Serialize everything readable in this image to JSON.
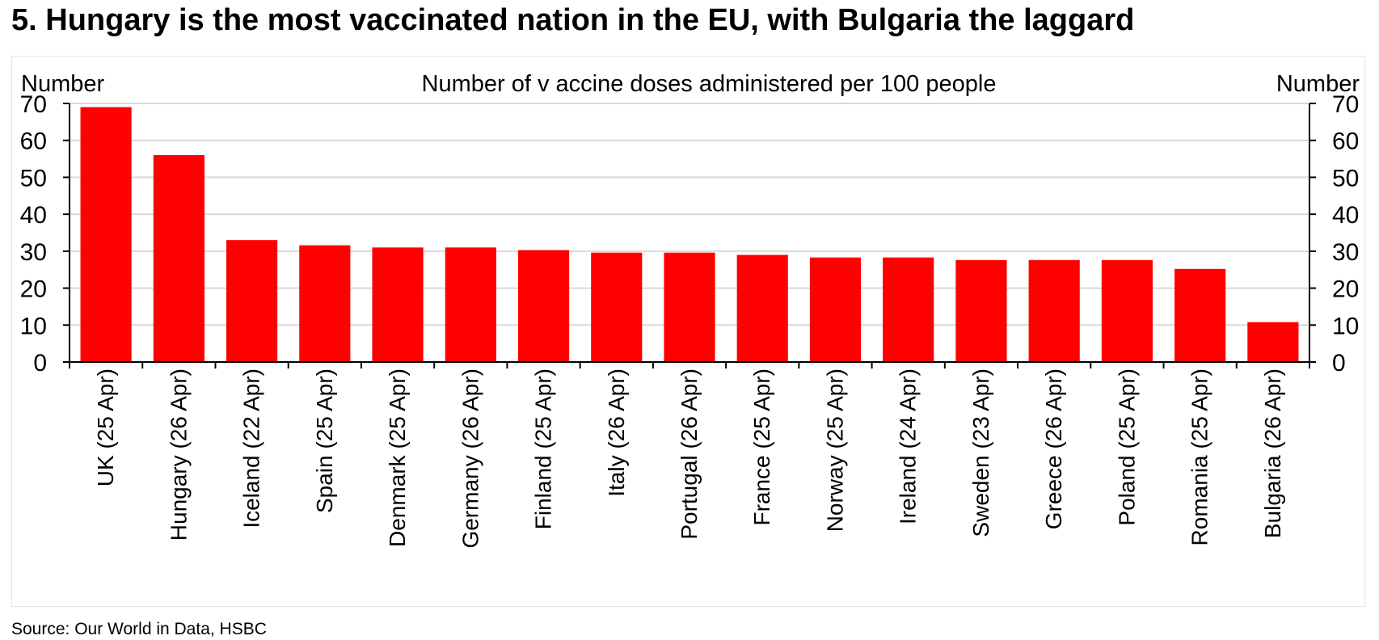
{
  "page": {
    "title": "5. Hungary is the most vaccinated nation in the EU, with Bulgaria the laggard",
    "source": "Source: Our World in Data, HSBC"
  },
  "chart_data": {
    "type": "bar",
    "title": "Number of v accine doses administered per 100 people",
    "ylabel_left": "Number",
    "ylabel_right": "Number",
    "xlabel": "",
    "ylim": [
      0,
      70
    ],
    "yticks": [
      0,
      10,
      20,
      30,
      40,
      50,
      60,
      70
    ],
    "grid": true,
    "bar_color": "#ff0000",
    "categories": [
      "UK (25 Apr)",
      "Hungary (26 Apr)",
      "Iceland (22 Apr)",
      "Spain (25 Apr)",
      "Denmark (25 Apr)",
      "Germany (26 Apr)",
      "Finland (25 Apr)",
      "Italy (26 Apr)",
      "Portugal (26 Apr)",
      "France (25 Apr)",
      "Norway (25 Apr)",
      "Ireland (24 Apr)",
      "Sweden (23 Apr)",
      "Greece (26 Apr)",
      "Poland (25 Apr)",
      "Romania (25 Apr)",
      "Bulgaria (26 Apr)"
    ],
    "values": [
      69,
      56,
      33,
      31.6,
      31,
      31,
      30.3,
      29.6,
      29.6,
      29,
      28.3,
      28.3,
      27.6,
      27.6,
      27.6,
      25.2,
      10.8
    ]
  }
}
